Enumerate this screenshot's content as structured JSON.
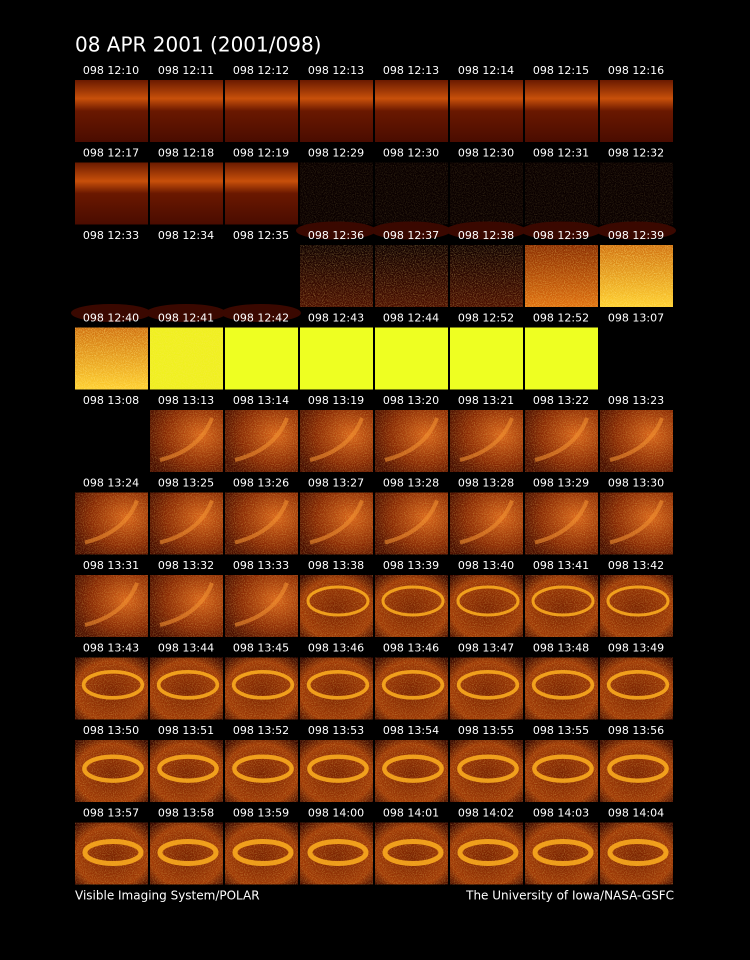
{
  "header": {
    "title": "08 APR 2001  (2001/098)"
  },
  "frames": [
    "098 12:10",
    "098 12:11",
    "098 12:12",
    "098 12:13",
    "098 12:13",
    "098 12:14",
    "098 12:15",
    "098 12:16",
    "098 12:17",
    "098 12:18",
    "098 12:19",
    "098 12:29",
    "098 12:30",
    "098 12:30",
    "098 12:31",
    "098 12:32",
    "098 12:33",
    "098 12:34",
    "098 12:35",
    "098 12:36",
    "098 12:37",
    "098 12:38",
    "098 12:39",
    "098 12:39",
    "098 12:40",
    "098 12:41",
    "098 12:42",
    "098 12:43",
    "098 12:44",
    "098 12:52",
    "098 12:52",
    "098 13:07",
    "098 13:08",
    "098 13:13",
    "098 13:14",
    "098 13:19",
    "098 13:20",
    "098 13:21",
    "098 13:22",
    "098 13:23",
    "098 13:24",
    "098 13:25",
    "098 13:26",
    "098 13:27",
    "098 13:28",
    "098 13:28",
    "098 13:29",
    "098 13:30",
    "098 13:31",
    "098 13:32",
    "098 13:33",
    "098 13:38",
    "098 13:39",
    "098 13:40",
    "098 13:41",
    "098 13:42",
    "098 13:43",
    "098 13:44",
    "098 13:45",
    "098 13:46",
    "098 13:46",
    "098 13:47",
    "098 13:48",
    "098 13:49",
    "098 13:50",
    "098 13:51",
    "098 13:52",
    "098 13:53",
    "098 13:54",
    "098 13:55",
    "098 13:55",
    "098 13:56",
    "098 13:57",
    "098 13:58",
    "098 13:59",
    "098 14:00",
    "098 14:01",
    "098 14:02",
    "098 14:03",
    "098 14:04"
  ],
  "footer": {
    "left": "Visible Imaging System/POLAR",
    "right": "The University of Iowa/NASA-GSFC"
  }
}
